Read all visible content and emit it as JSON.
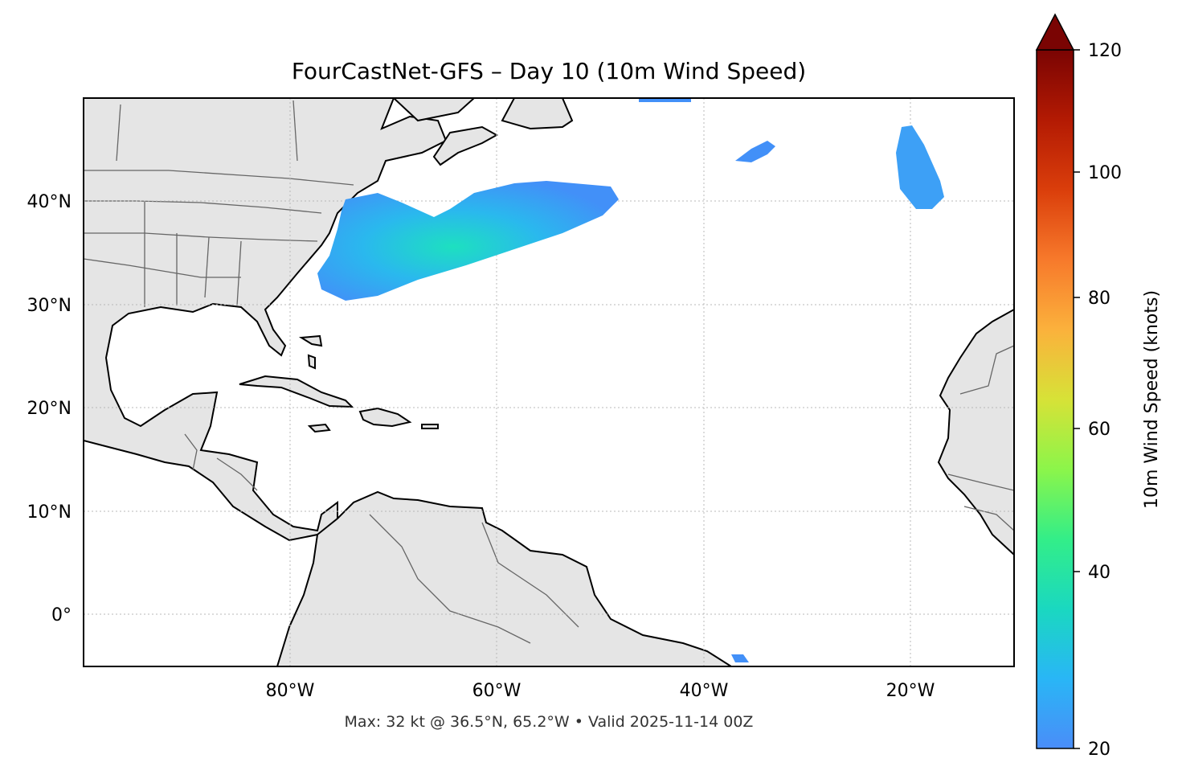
{
  "title": "FourCastNet-GFS – Day 10 (10m Wind Speed)",
  "footer": "Max: 32 kt @ 36.5°N, 65.2°W • Valid 2025-11-14 00Z",
  "map": {
    "lon_range": [
      -100,
      -10
    ],
    "lat_range": [
      -5,
      50
    ],
    "lat_ticks": [
      {
        "value": 40,
        "label": "40°N"
      },
      {
        "value": 30,
        "label": "30°N"
      },
      {
        "value": 20,
        "label": "20°N"
      },
      {
        "value": 10,
        "label": "10°N"
      },
      {
        "value": 0,
        "label": "0°"
      }
    ],
    "lon_ticks": [
      {
        "value": -80,
        "label": "80°W"
      },
      {
        "value": -60,
        "label": "60°W"
      },
      {
        "value": -40,
        "label": "40°W"
      },
      {
        "value": -20,
        "label": "20°W"
      }
    ],
    "gridlines": true,
    "land_color": "#e5e5e5",
    "coast_color": "#000000",
    "border_color": "#666666"
  },
  "colorbar": {
    "label": "10m Wind Speed (knots)",
    "min": 20,
    "max": 120,
    "extend": "max",
    "ticks": [
      {
        "value": 120,
        "label": "120"
      },
      {
        "value": 100,
        "label": "100"
      },
      {
        "value": 80,
        "label": "80"
      },
      {
        "value": 60,
        "label": "60"
      },
      {
        "value": 40,
        "label": "40"
      },
      {
        "value": 20,
        "label": "20"
      }
    ],
    "colors": [
      "#4a8df8",
      "#29b6f6",
      "#1ad8c0",
      "#33ee88",
      "#8cf54a",
      "#d7e237",
      "#fbb13c",
      "#f7792b",
      "#da3e0b",
      "#b31a03",
      "#7a0403"
    ]
  }
}
